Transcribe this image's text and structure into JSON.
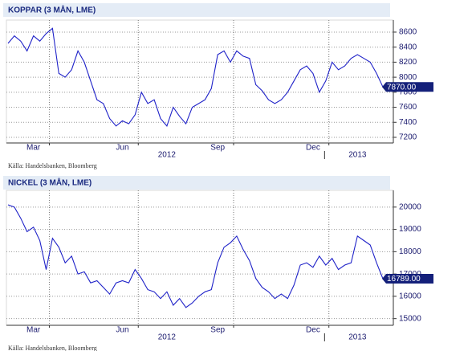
{
  "chart_data": [
    {
      "type": "line",
      "title": "KOPPAR (3 MÅN, LME)",
      "source": "Källa: Handelsbanken, Bloomberg",
      "categories": [
        null,
        null,
        null,
        null,
        "Mar",
        null,
        null,
        null,
        null,
        null,
        null,
        null,
        null,
        null,
        null,
        null,
        null,
        null,
        "Jun",
        null,
        null,
        null,
        null,
        null,
        null,
        null,
        null,
        null,
        null,
        null,
        null,
        null,
        null,
        "Sep",
        null,
        null,
        null,
        null,
        null,
        null,
        null,
        null,
        null,
        null,
        null,
        null,
        null,
        null,
        "Dec",
        null,
        null,
        null,
        null,
        null,
        null,
        null,
        null,
        null,
        null,
        null
      ],
      "year_categories": [
        null,
        null,
        null,
        null,
        null,
        null,
        null,
        null,
        null,
        null,
        null,
        null,
        null,
        null,
        null,
        null,
        null,
        null,
        null,
        null,
        null,
        null,
        null,
        null,
        null,
        "2012",
        null,
        null,
        null,
        null,
        null,
        null,
        null,
        null,
        null,
        null,
        null,
        null,
        null,
        null,
        null,
        null,
        null,
        null,
        null,
        null,
        null,
        null,
        null,
        null,
        null,
        null,
        null,
        null,
        null,
        "2013",
        null,
        null,
        null,
        null
      ],
      "color": "#1f22c8",
      "values": [
        8450,
        8550,
        8480,
        8350,
        8550,
        8480,
        8580,
        8650,
        8050,
        8000,
        8100,
        8350,
        8200,
        7950,
        7700,
        7650,
        7450,
        7350,
        7420,
        7380,
        7500,
        7800,
        7650,
        7700,
        7450,
        7350,
        7600,
        7480,
        7380,
        7600,
        7650,
        7700,
        7850,
        8300,
        8350,
        8200,
        8350,
        8280,
        8250,
        7900,
        7820,
        7700,
        7650,
        7700,
        7800,
        7950,
        8100,
        8150,
        8050,
        7800,
        7950,
        8200,
        8100,
        8150,
        8250,
        8300,
        8250,
        8200,
        8050,
        7870
      ],
      "value_labels": [
        null,
        null,
        null,
        null,
        null,
        null,
        null,
        null,
        null,
        null,
        null,
        null,
        null,
        null,
        null,
        null,
        null,
        null,
        null,
        null,
        null,
        null,
        null,
        null,
        null,
        null,
        null,
        null,
        null,
        null,
        null,
        null,
        null,
        null,
        null,
        null,
        null,
        null,
        null,
        null,
        null,
        null,
        null,
        null,
        null,
        null,
        null,
        null,
        null,
        null,
        null,
        null,
        null,
        null,
        null,
        null,
        null,
        null,
        null,
        "7870.00"
      ],
      "ylim": [
        7125,
        8760
      ],
      "yticks": [
        7200,
        7400,
        7600,
        7800,
        8000,
        8200,
        8400,
        8600
      ],
      "grid": true
    },
    {
      "type": "line",
      "title": "NICKEL (3 MÅN, LME)",
      "source": "Källa: Handelsbanken, Bloomberg",
      "categories": [
        null,
        null,
        null,
        null,
        "Mar",
        null,
        null,
        null,
        null,
        null,
        null,
        null,
        null,
        null,
        null,
        null,
        null,
        null,
        "Jun",
        null,
        null,
        null,
        null,
        null,
        null,
        null,
        null,
        null,
        null,
        null,
        null,
        null,
        null,
        "Sep",
        null,
        null,
        null,
        null,
        null,
        null,
        null,
        null,
        null,
        null,
        null,
        null,
        null,
        null,
        "Dec",
        null,
        null,
        null,
        null,
        null,
        null,
        null,
        null,
        null,
        null,
        null
      ],
      "year_categories": [
        null,
        null,
        null,
        null,
        null,
        null,
        null,
        null,
        null,
        null,
        null,
        null,
        null,
        null,
        null,
        null,
        null,
        null,
        null,
        null,
        null,
        null,
        null,
        null,
        null,
        "2012",
        null,
        null,
        null,
        null,
        null,
        null,
        null,
        null,
        null,
        null,
        null,
        null,
        null,
        null,
        null,
        null,
        null,
        null,
        null,
        null,
        null,
        null,
        null,
        null,
        null,
        null,
        null,
        null,
        null,
        "2013",
        null,
        null,
        null,
        null
      ],
      "color": "#1f22c8",
      "values": [
        20100,
        20000,
        19500,
        18900,
        19100,
        18500,
        17200,
        18600,
        18200,
        17500,
        17800,
        17000,
        17100,
        16600,
        16700,
        16400,
        16100,
        16600,
        16700,
        16600,
        17200,
        16800,
        16300,
        16200,
        15900,
        16200,
        15600,
        15900,
        15500,
        15700,
        16000,
        16200,
        16300,
        17500,
        18200,
        18400,
        18700,
        18100,
        17600,
        16800,
        16400,
        16200,
        15900,
        16100,
        15900,
        16500,
        17400,
        17500,
        17300,
        17800,
        17400,
        17700,
        17200,
        17400,
        17500,
        18700,
        18500,
        18300,
        17500,
        16789
      ],
      "value_labels": [
        null,
        null,
        null,
        null,
        null,
        null,
        null,
        null,
        null,
        null,
        null,
        null,
        null,
        null,
        null,
        null,
        null,
        null,
        null,
        null,
        null,
        null,
        null,
        null,
        null,
        null,
        null,
        null,
        null,
        null,
        null,
        null,
        null,
        null,
        null,
        null,
        null,
        null,
        null,
        null,
        null,
        null,
        null,
        null,
        null,
        null,
        null,
        null,
        null,
        null,
        null,
        null,
        null,
        null,
        null,
        null,
        null,
        null,
        null,
        "16789.00"
      ],
      "ylim": [
        14700,
        20750
      ],
      "yticks": [
        15000,
        16000,
        17000,
        18000,
        19000,
        20000
      ],
      "grid": true
    }
  ]
}
